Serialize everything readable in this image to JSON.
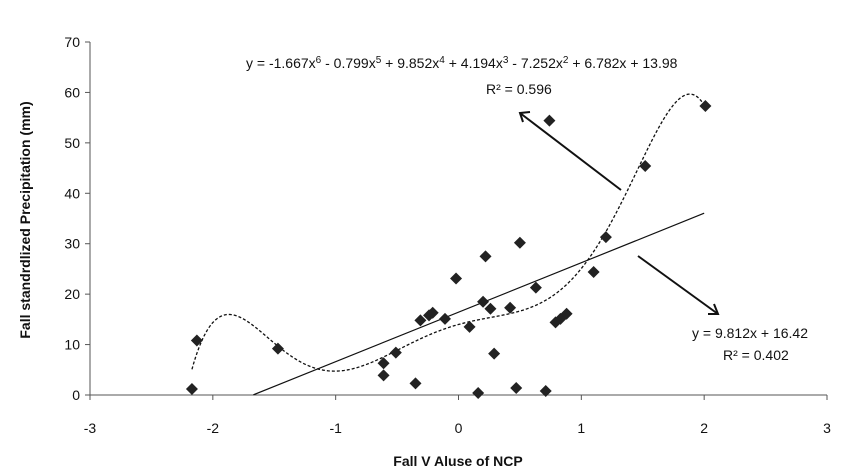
{
  "chart_data": {
    "type": "scatter",
    "xlabel": "Fall V Aluse of NCP",
    "ylabel": "Fall standrdlized Precipitation (mm)",
    "xlim": [
      -3,
      3
    ],
    "ylim": [
      0,
      70
    ],
    "xticks": [
      "-3",
      "-2",
      "-1",
      "0",
      "1",
      "2",
      "3"
    ],
    "yticks": [
      "0",
      "10",
      "20",
      "30",
      "40",
      "50",
      "60",
      "70"
    ],
    "grid": false,
    "points": [
      {
        "x": -2.17,
        "y": 1.2
      },
      {
        "x": -2.13,
        "y": 10.8
      },
      {
        "x": -1.47,
        "y": 9.2
      },
      {
        "x": -0.61,
        "y": 6.3
      },
      {
        "x": -0.61,
        "y": 3.9
      },
      {
        "x": -0.51,
        "y": 8.4
      },
      {
        "x": -0.35,
        "y": 2.3
      },
      {
        "x": -0.31,
        "y": 14.8
      },
      {
        "x": -0.24,
        "y": 15.8
      },
      {
        "x": -0.21,
        "y": 16.3
      },
      {
        "x": -0.11,
        "y": 15.1
      },
      {
        "x": -0.02,
        "y": 23.1
      },
      {
        "x": 0.09,
        "y": 13.5
      },
      {
        "x": 0.16,
        "y": 0.4
      },
      {
        "x": 0.2,
        "y": 18.5
      },
      {
        "x": 0.22,
        "y": 27.5
      },
      {
        "x": 0.26,
        "y": 17.1
      },
      {
        "x": 0.29,
        "y": 8.2
      },
      {
        "x": 0.42,
        "y": 17.3
      },
      {
        "x": 0.47,
        "y": 1.4
      },
      {
        "x": 0.5,
        "y": 30.2
      },
      {
        "x": 0.63,
        "y": 21.3
      },
      {
        "x": 0.71,
        "y": 0.8
      },
      {
        "x": 0.74,
        "y": 54.4
      },
      {
        "x": 0.79,
        "y": 14.4
      },
      {
        "x": 0.83,
        "y": 15.1
      },
      {
        "x": 0.88,
        "y": 16.1
      },
      {
        "x": 1.1,
        "y": 24.4
      },
      {
        "x": 1.2,
        "y": 31.3
      },
      {
        "x": 1.52,
        "y": 45.4
      },
      {
        "x": 2.01,
        "y": 57.3
      }
    ],
    "trendlines": [
      {
        "kind": "linear",
        "slope": 9.812,
        "intercept": 16.42,
        "x_range": [
          -1.67,
          2.0
        ],
        "style": "solid"
      },
      {
        "kind": "polynomial",
        "coefficients": [
          13.98,
          6.782,
          -7.252,
          4.194,
          9.852,
          -0.799,
          -1.667
        ],
        "x_range": [
          -2.17,
          2.0
        ],
        "style": "dashed"
      }
    ],
    "annotations": {
      "poly_equation": "y = -1.667x6 - 0.799x5 + 9.852x4 + 4.194x3 - 7.252x2 + 6.782x + 13.98",
      "poly_r2": "R² = 0.596",
      "linear_equation": "y = 9.812x + 16.42",
      "linear_r2": "R² = 0.402"
    },
    "poly_equation_parts": {
      "p1": "y = -1.667x",
      "e1": "6",
      "p2": " - 0.799x",
      "e2": "5",
      "p3": " + 9.852x",
      "e3": "4",
      "p4": " + 4.194x",
      "e4": "3",
      "p5": " - 7.252x",
      "e5": "2",
      "p6": " + 6.782x + 13.98"
    }
  }
}
